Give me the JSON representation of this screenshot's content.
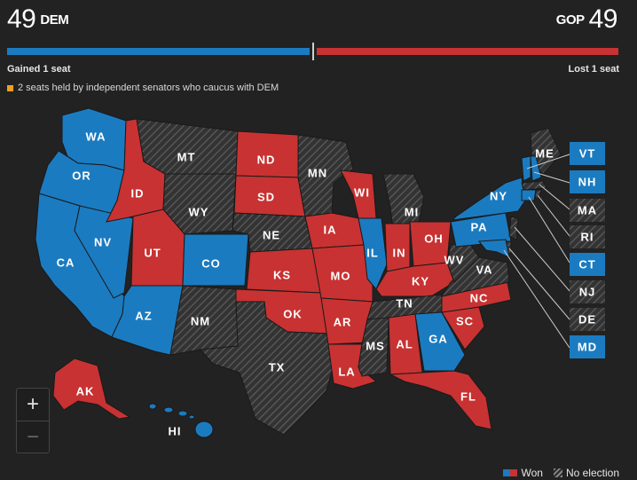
{
  "header": {
    "dem_seats": "49",
    "dem_label": "DEM",
    "gop_seats": "49",
    "gop_label": "GOP",
    "dem_note": "Gained 1 seat",
    "gop_note": "Lost 1 seat",
    "independent_note": "2 seats held by independent senators who caucus with DEM"
  },
  "colors": {
    "dem": "#1b7bc0",
    "gop": "#c83232",
    "no_election": "#3a3a3a",
    "independent": "#f0a020",
    "background": "#222222"
  },
  "states": {
    "WA": "WA",
    "OR": "OR",
    "CA": "CA",
    "NV": "NV",
    "ID": "ID",
    "MT": "MT",
    "WY": "WY",
    "UT": "UT",
    "CO": "CO",
    "AZ": "AZ",
    "NM": "NM",
    "ND": "ND",
    "SD": "SD",
    "NE": "NE",
    "KS": "KS",
    "OK": "OK",
    "TX": "TX",
    "MN": "MN",
    "IA": "IA",
    "MO": "MO",
    "AR": "AR",
    "LA": "LA",
    "WI": "WI",
    "IL": "IL",
    "MI": "MI",
    "IN": "IN",
    "OH": "OH",
    "KY": "KY",
    "TN": "TN",
    "MS": "MS",
    "AL": "AL",
    "GA": "GA",
    "FL": "FL",
    "SC": "SC",
    "NC": "NC",
    "VA": "VA",
    "WV": "WV",
    "PA": "PA",
    "NY": "NY",
    "ME": "ME",
    "AK": "AK",
    "HI": "HI"
  },
  "northeast_boxes": {
    "VT": "VT",
    "NH": "NH",
    "MA": "MA",
    "RI": "RI",
    "CT": "CT",
    "NJ": "NJ",
    "DE": "DE",
    "MD": "MD"
  },
  "results": {
    "dem": [
      "WA",
      "OR",
      "CA",
      "NV",
      "CO",
      "AZ",
      "IL",
      "PA",
      "NY",
      "GA",
      "VT",
      "NH",
      "CT",
      "MD",
      "HI"
    ],
    "gop": [
      "ID",
      "UT",
      "ND",
      "SD",
      "KS",
      "OK",
      "IA",
      "MO",
      "AR",
      "LA",
      "WI",
      "IN",
      "OH",
      "KY",
      "NC",
      "SC",
      "AL",
      "FL",
      "AK"
    ],
    "no_election": [
      "MT",
      "WY",
      "NM",
      "NE",
      "TX",
      "MN",
      "MI",
      "TN",
      "MS",
      "VA",
      "WV",
      "ME",
      "MA",
      "RI",
      "NJ",
      "DE"
    ]
  },
  "controls": {
    "zoom_in": "+",
    "zoom_out": "−"
  },
  "legend": {
    "won": "Won",
    "no_election": "No election"
  }
}
